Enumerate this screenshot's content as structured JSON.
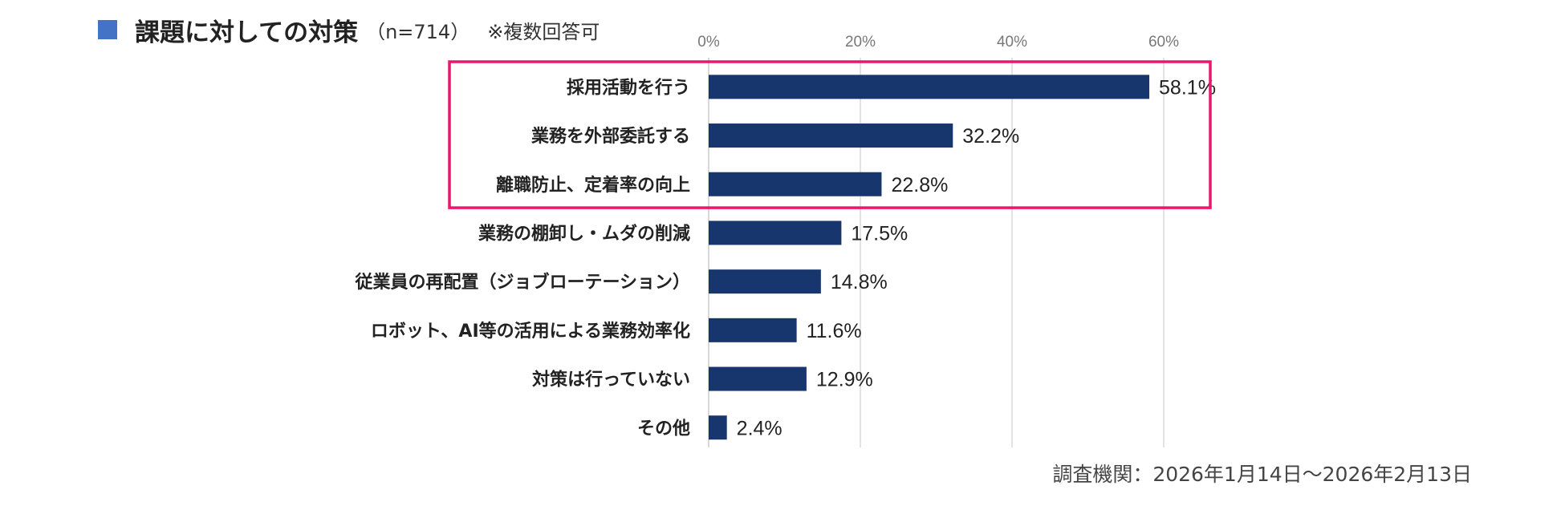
{
  "header": {
    "title": "課題に対しての対策",
    "sample": "（n=714）",
    "note": "※複数回答可"
  },
  "footer": {
    "survey_period": "調査機関：2026年1月14日～2026年2月13日"
  },
  "colors": {
    "bar": "#17366d",
    "title_square": "#4472c4",
    "highlight_border": "#e8176f",
    "grid": "#d0d0d0"
  },
  "chart_data": {
    "type": "bar",
    "orientation": "horizontal",
    "categories": [
      "採用活動を行う",
      "業務を外部委託する",
      "離職防止、定着率の向上",
      "業務の棚卸し・ムダの削減",
      "従業員の再配置（ジョブローテーション）",
      "ロボット、AI等の活用による業務効率化",
      "対策は行っていない",
      "その他"
    ],
    "values": [
      58.1,
      32.2,
      22.8,
      17.5,
      14.8,
      11.6,
      12.9,
      2.4
    ],
    "value_labels": [
      "58.1%",
      "32.2%",
      "22.8%",
      "17.5%",
      "14.8%",
      "11.6%",
      "12.9%",
      "2.4%"
    ],
    "x_ticks": [
      0,
      20,
      40,
      60
    ],
    "x_tick_labels": [
      "0%",
      "20%",
      "40%",
      "60%"
    ],
    "xlim": [
      0,
      60
    ],
    "axis_position": "top",
    "grid": true,
    "highlighted_categories": [
      "採用活動を行う",
      "業務を外部委託する",
      "離職防止、定着率の向上"
    ]
  }
}
